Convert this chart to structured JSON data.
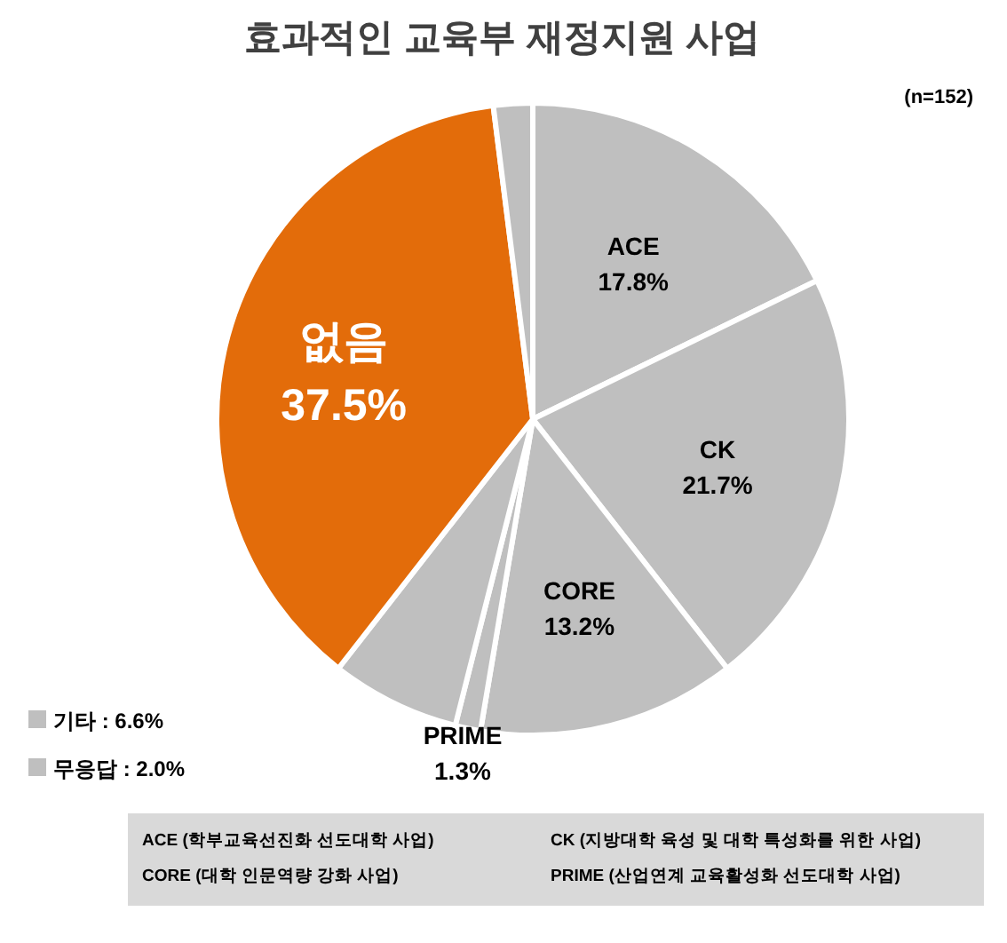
{
  "chart_data": {
    "type": "pie",
    "title": "효과적인 교육부 재정지원 사업",
    "subtitle": "(n=152)",
    "categories": [
      "ACE",
      "CK",
      "CORE",
      "PRIME",
      "기타",
      "없음",
      "무응답"
    ],
    "values": [
      17.8,
      21.7,
      13.2,
      1.3,
      6.6,
      37.5,
      2.0
    ],
    "colors": [
      "#bfbfbf",
      "#bfbfbf",
      "#bfbfbf",
      "#bfbfbf",
      "#bfbfbf",
      "#e36c0a",
      "#bfbfbf"
    ],
    "value_labels": [
      "17.8%",
      "21.7%",
      "13.2%",
      "1.3%",
      "6.6%",
      "37.5%",
      "2.0%"
    ],
    "legend": "bottom left",
    "annotations": [
      "ACE (학부교육선진화 선도대학 사업)",
      "CK (지방대학 육성 및 대학 특성화를 위한 사업)",
      "CORE (대학 인문역량 강화 사업)",
      "PRIME (산업연계 교육활성화 선도대학 사업)"
    ]
  }
}
